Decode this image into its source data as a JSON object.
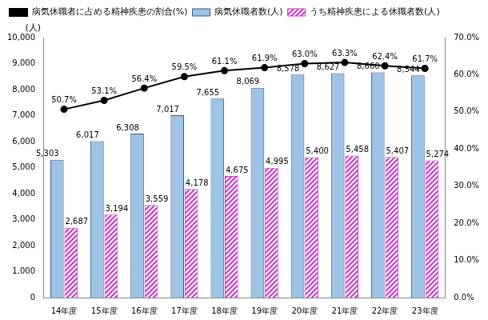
{
  "chart_data": {
    "type": "bar",
    "ylabel": "(人)",
    "categories": [
      "14年度",
      "15年度",
      "16年度",
      "17年度",
      "18年度",
      "19年度",
      "20年度",
      "21年度",
      "22年度",
      "23年度"
    ],
    "series": [
      {
        "name": "病気休職者数(人)",
        "type": "bar",
        "color": "#9dc3e6",
        "values": [
          5303,
          6017,
          6308,
          7017,
          7655,
          8069,
          8578,
          8627,
          8660,
          8544
        ],
        "value_labels": [
          "5,303",
          "6,017",
          "6,308",
          "7,017",
          "7,655",
          "8,069",
          "8,578",
          "8,627",
          "8,660",
          "8,544"
        ]
      },
      {
        "name": "うち精神疾患による休職者数(人)",
        "type": "bar",
        "color": "#cc33cc",
        "values": [
          2687,
          3194,
          3559,
          4178,
          4675,
          4995,
          5400,
          5458,
          5407,
          5274
        ],
        "value_labels": [
          "2,687",
          "3,194",
          "3,559",
          "4,178",
          "4,675",
          "4,995",
          "5,400",
          "5,458",
          "5,407",
          "5,274"
        ]
      },
      {
        "name": "病気休職者に占める精神疾患の割合(%)",
        "type": "line",
        "axis": "y2",
        "color": "#000000",
        "marker": "circle",
        "values": [
          50.7,
          53.1,
          56.4,
          59.5,
          61.1,
          61.9,
          63.0,
          63.3,
          62.4,
          61.7
        ],
        "value_labels": [
          "50.7%",
          "53.1%",
          "56.4%",
          "59.5%",
          "61.1%",
          "61.9%",
          "63.0%",
          "63.3%",
          "62.4%",
          "61.7%"
        ]
      }
    ],
    "ylim": [
      0,
      10000
    ],
    "yticks": [
      0,
      {
        "value": 1000,
        "label": "1,000"
      },
      {
        "value": 2000,
        "label": "2,000"
      },
      {
        "value": 3000,
        "label": "3,000"
      },
      {
        "value": 4000,
        "label": "4,000"
      },
      {
        "value": 5000,
        "label": "5,000"
      },
      {
        "value": 6000,
        "label": "6,000"
      },
      {
        "value": 7000,
        "label": "7,000"
      },
      {
        "value": 8000,
        "label": "8,000"
      },
      {
        "value": 9000,
        "label": "9,000"
      },
      {
        "value": 10000,
        "label": "10,000"
      }
    ],
    "y2lim": [
      0,
      70
    ],
    "y2ticks": [
      {
        "value": 0,
        "label": "0.0%"
      },
      {
        "value": 10,
        "label": "10.0%"
      },
      {
        "value": 20,
        "label": "20.0%"
      },
      {
        "value": 30,
        "label": "30.0%"
      },
      {
        "value": 40,
        "label": "40.0%"
      },
      {
        "value": 50,
        "label": "50.0%"
      },
      {
        "value": 60,
        "label": "60.0%"
      },
      {
        "value": 70,
        "label": "70.0%"
      }
    ],
    "grid": false,
    "legend": "upper left",
    "data_labels": true
  }
}
